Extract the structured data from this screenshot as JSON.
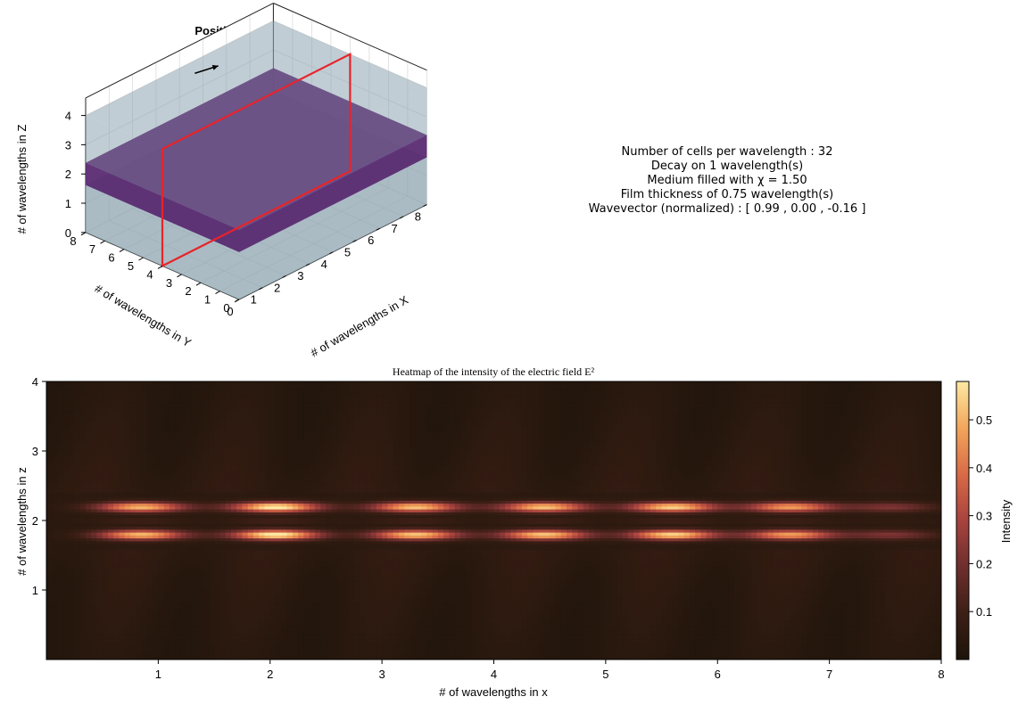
{
  "chart_data": [
    {
      "type": "3d-box",
      "title": "Position of the heatmap",
      "xlabel": "# of wavelengths in X",
      "ylabel": "# of wavelengths in Y",
      "zlabel": "# of wavelengths in Z",
      "x_ticks": [
        "0",
        "1",
        "2",
        "3",
        "4",
        "5",
        "6",
        "7",
        "8"
      ],
      "y_ticks": [
        "0",
        "1",
        "2",
        "3",
        "4",
        "5",
        "6",
        "7",
        "8"
      ],
      "z_ticks": [
        "0",
        "1",
        "2",
        "3",
        "4"
      ],
      "xlim": [
        0,
        8
      ],
      "ylim": [
        0,
        8
      ],
      "zlim": [
        0,
        4.6
      ],
      "medium_box": {
        "x": [
          0,
          8
        ],
        "y": [
          0,
          8
        ],
        "z": [
          0,
          4
        ]
      },
      "film_slab": {
        "x": [
          0,
          8
        ],
        "y": [
          0,
          8
        ],
        "z": [
          1.62,
          2.38
        ]
      },
      "heatmap_plane": {
        "y": 4,
        "x": [
          0,
          8
        ],
        "z": [
          0,
          4
        ]
      },
      "wavevector_arrow": {
        "start": [
          4.0,
          7.2,
          4.05
        ],
        "end": [
          5.0,
          7.2,
          3.9
        ]
      },
      "colors": {
        "medium": "#8ea4b0",
        "film": "#5b2d72",
        "plane": "#e8232a",
        "arrow": "#000000"
      },
      "grid": true
    },
    {
      "type": "heatmap",
      "title": "Heatmap of the intensity of the electric field E²",
      "xlabel": "# of wavelengths in x",
      "ylabel": "# of wavelengths in z",
      "x_ticks": [
        "1",
        "2",
        "3",
        "4",
        "5",
        "6",
        "7",
        "8"
      ],
      "y_ticks": [
        "1",
        "2",
        "3",
        "4"
      ],
      "xlim": [
        0,
        8
      ],
      "ylim": [
        0,
        4
      ],
      "film_band_z": [
        1.62,
        2.38
      ],
      "hotspot_rows_z": [
        2.2,
        1.8
      ],
      "hotspot_centers_x": [
        0.85,
        2.05,
        3.3,
        4.45,
        5.6,
        6.65,
        7.55
      ],
      "hotspot_peak_intensity": [
        0.48,
        0.57,
        0.5,
        0.5,
        0.52,
        0.44,
        0.18
      ],
      "colorbar": {
        "label": "Intensity",
        "ticks": [
          "0.1",
          "0.2",
          "0.3",
          "0.4",
          "0.5"
        ],
        "range": [
          0,
          0.58
        ],
        "colormap": [
          "#1c1409",
          "#3d1f16",
          "#6e2e2d",
          "#a8433e",
          "#d96a47",
          "#f2a65b",
          "#fde9a3"
        ]
      }
    }
  ],
  "info": {
    "line1": "Number of cells per wavelength : 32",
    "line2": "Decay on 1 wavelength(s)",
    "line3": "Medium filled with χ = 1.50",
    "line4": "Film thickness of 0.75 wavelength(s)",
    "line5": "Wavevector (normalized) : [ 0.99 , 0.00 , -0.16 ]"
  }
}
